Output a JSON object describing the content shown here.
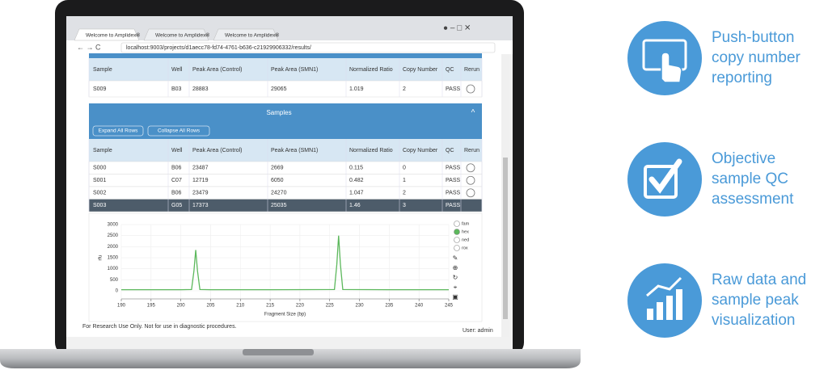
{
  "browser": {
    "tabs": [
      "Welcome to Amplidex®",
      "Welcome to Amplidex®",
      "Welcome to Amplidex®"
    ],
    "url": "localhost:9003/projects/d1aecc78-fd74-4761-b636-c21929906332/results/"
  },
  "top_table": {
    "columns": [
      "Sample",
      "Well",
      "Peak Area (Control)",
      "Peak Area (SMN1)",
      "Normalized Ratio",
      "Copy Number",
      "QC",
      "Rerun"
    ],
    "rows": [
      [
        "S009",
        "B03",
        "28883",
        "29065",
        "1.019",
        "2",
        "PASS"
      ]
    ]
  },
  "samples": {
    "title": "Samples",
    "buttons": [
      "Expand All Rows",
      "Collapse All Rows"
    ],
    "columns": [
      "Sample",
      "Well",
      "Peak Area (Control)",
      "Peak Area (SMN1)",
      "Normalized Ratio",
      "Copy Number",
      "QC",
      "Rerun"
    ],
    "rows": [
      [
        "S000",
        "B06",
        "23487",
        "2669",
        "0.115",
        "0",
        "PASS"
      ],
      [
        "S001",
        "C07",
        "12719",
        "6050",
        "0.482",
        "1",
        "PASS"
      ],
      [
        "S002",
        "B06",
        "23479",
        "24270",
        "1.047",
        "2",
        "PASS"
      ],
      [
        "S003",
        "G05",
        "17373",
        "25035",
        "1.46",
        "3",
        "PASS"
      ]
    ],
    "selected_row": 3
  },
  "chart": {
    "type": "line",
    "x_label": "Fragment Size (bp)",
    "y_label": "rfu",
    "x": [
      190,
      200,
      201.8,
      202.2,
      202.5,
      202.8,
      203.2,
      205,
      215,
      225.8,
      226.2,
      226.5,
      226.8,
      227.2,
      235,
      245
    ],
    "values": [
      50,
      50,
      60,
      900,
      1850,
      900,
      60,
      50,
      50,
      60,
      1200,
      2500,
      1200,
      60,
      50,
      50
    ],
    "color": "#5cb85c",
    "xlim": [
      190,
      245
    ],
    "xticks": [
      190,
      195,
      200,
      205,
      210,
      215,
      220,
      225,
      230,
      235,
      240,
      245
    ],
    "ylim": [
      0,
      3000
    ],
    "yticks": [
      0,
      500,
      1000,
      1500,
      2000,
      2500,
      3000
    ],
    "grid": true,
    "channels": [
      "fam",
      "hex",
      "ned",
      "rox"
    ],
    "active_channel": 1
  },
  "footer": "For Research Use Only. Not for use in diagnostic procedures.",
  "user": "User: admin",
  "features": [
    [
      "Push-button",
      "copy number",
      "reporting"
    ],
    [
      "Objective",
      "sample QC",
      "assessment"
    ],
    [
      "Raw data and",
      "sample peak",
      "visualization"
    ]
  ]
}
